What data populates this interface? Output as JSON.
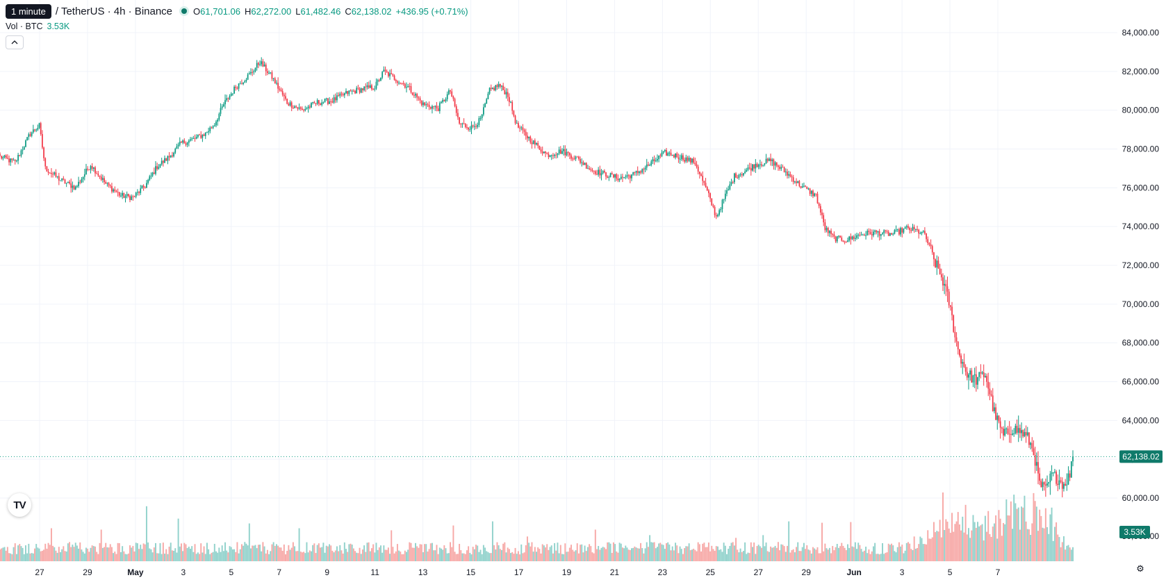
{
  "header": {
    "tooltip": "1 minute",
    "symbol": "/ TetherUS · 4h · Binance",
    "open_label": "O",
    "open_value": "61,701.06",
    "high_label": "H",
    "high_value": "62,272.00",
    "low_label": "L",
    "low_value": "61,482.46",
    "close_label": "C",
    "close_value": "62,138.02",
    "change": "+436.95 (+0.71%)"
  },
  "volume_legend": {
    "label": "Vol · BTC",
    "value": "3.53K"
  },
  "controls": {
    "collapse_icon": "chevron-up-icon",
    "logo_icon": "tradingview-logo-icon",
    "logo_text": "TV",
    "settings_icon": "gear-icon",
    "settings_glyph": "⚙"
  },
  "chart_data": {
    "type": "candlestick",
    "title": "",
    "price_axis": {
      "ticks": [
        60000,
        62000,
        64000,
        66000,
        68000,
        70000,
        72000,
        74000,
        76000,
        78000,
        80000,
        82000,
        84000
      ],
      "tick_labels": [
        "60,000.00",
        "62,000.00",
        "64,000.00",
        "66,000.00",
        "68,000.00",
        "70,000.00",
        "72,000.00",
        "74,000.00",
        "76,000.00",
        "78,000.00",
        "80,000.00",
        "82,000.00",
        "84,000.00"
      ],
      "range": [
        57500,
        85000
      ],
      "volume_tick_label": "50,000.00"
    },
    "last_price": {
      "value": 62138.02,
      "label": "62,138.02"
    },
    "last_volume": {
      "label": "3.53K"
    },
    "time_axis": {
      "labels": [
        "27",
        "29",
        "May",
        "3",
        "5",
        "7",
        "9",
        "11",
        "13",
        "15",
        "17",
        "19",
        "21",
        "23",
        "25",
        "27",
        "29",
        "Jun",
        "3",
        "5",
        "7"
      ],
      "bold": [
        false,
        false,
        true,
        false,
        false,
        false,
        false,
        false,
        false,
        false,
        false,
        false,
        false,
        false,
        false,
        false,
        false,
        true,
        false,
        false,
        false
      ]
    },
    "price_anchors": [
      [
        0,
        77600
      ],
      [
        10,
        77300
      ],
      [
        20,
        78800
      ],
      [
        26,
        79200
      ],
      [
        30,
        77000
      ],
      [
        40,
        76400
      ],
      [
        50,
        76000
      ],
      [
        60,
        77200
      ],
      [
        70,
        76200
      ],
      [
        80,
        75600
      ],
      [
        88,
        75500
      ],
      [
        96,
        76100
      ],
      [
        104,
        77100
      ],
      [
        112,
        77600
      ],
      [
        120,
        78300
      ],
      [
        128,
        78500
      ],
      [
        136,
        78800
      ],
      [
        142,
        79300
      ],
      [
        148,
        80300
      ],
      [
        156,
        81200
      ],
      [
        166,
        81900
      ],
      [
        172,
        82500
      ],
      [
        180,
        81700
      ],
      [
        190,
        80400
      ],
      [
        200,
        80000
      ],
      [
        210,
        80400
      ],
      [
        220,
        80500
      ],
      [
        230,
        80900
      ],
      [
        240,
        81100
      ],
      [
        248,
        81200
      ],
      [
        254,
        82000
      ],
      [
        262,
        81600
      ],
      [
        270,
        81200
      ],
      [
        280,
        80300
      ],
      [
        290,
        80100
      ],
      [
        298,
        81000
      ],
      [
        304,
        79300
      ],
      [
        312,
        79100
      ],
      [
        318,
        79500
      ],
      [
        324,
        81000
      ],
      [
        330,
        81300
      ],
      [
        336,
        80800
      ],
      [
        342,
        79200
      ],
      [
        352,
        78400
      ],
      [
        362,
        77700
      ],
      [
        372,
        77900
      ],
      [
        382,
        77500
      ],
      [
        392,
        76900
      ],
      [
        400,
        76700
      ],
      [
        410,
        76500
      ],
      [
        420,
        76700
      ],
      [
        430,
        77200
      ],
      [
        440,
        77800
      ],
      [
        450,
        77600
      ],
      [
        460,
        77300
      ],
      [
        468,
        75800
      ],
      [
        474,
        74500
      ],
      [
        480,
        75600
      ],
      [
        486,
        76600
      ],
      [
        492,
        76800
      ],
      [
        500,
        77200
      ],
      [
        510,
        77400
      ],
      [
        520,
        76800
      ],
      [
        530,
        76100
      ],
      [
        540,
        75600
      ],
      [
        546,
        73900
      ],
      [
        552,
        73400
      ],
      [
        560,
        73300
      ],
      [
        570,
        73600
      ],
      [
        580,
        73700
      ],
      [
        590,
        73600
      ],
      [
        600,
        73900
      ],
      [
        606,
        73800
      ],
      [
        612,
        73600
      ],
      [
        618,
        72300
      ],
      [
        624,
        71200
      ],
      [
        628,
        70100
      ],
      [
        634,
        67600
      ],
      [
        640,
        66400
      ],
      [
        646,
        66100
      ],
      [
        652,
        66400
      ],
      [
        658,
        64400
      ],
      [
        664,
        63200
      ],
      [
        670,
        63600
      ],
      [
        676,
        63400
      ],
      [
        680,
        63100
      ],
      [
        684,
        62400
      ],
      [
        688,
        60700
      ],
      [
        692,
        60400
      ],
      [
        696,
        61200
      ],
      [
        700,
        61000
      ],
      [
        704,
        60700
      ],
      [
        708,
        61200
      ],
      [
        710,
        62138
      ]
    ],
    "volume_profile": [
      [
        0,
        0.2
      ],
      [
        600,
        0.2
      ],
      [
        612,
        0.35
      ],
      [
        616,
        0.55
      ],
      [
        640,
        0.5
      ],
      [
        660,
        0.55
      ],
      [
        676,
        0.8
      ],
      [
        690,
        0.65
      ],
      [
        700,
        0.4
      ],
      [
        706,
        0.2
      ],
      [
        710,
        0.16
      ]
    ],
    "volume_spikes": [
      [
        34,
        0.48
      ],
      [
        67,
        0.46
      ],
      [
        97,
        0.8
      ],
      [
        118,
        0.62
      ],
      [
        165,
        0.55
      ],
      [
        198,
        0.48
      ],
      [
        259,
        0.45
      ],
      [
        300,
        0.52
      ],
      [
        326,
        0.58
      ],
      [
        349,
        0.36
      ],
      [
        394,
        0.46
      ],
      [
        430,
        0.38
      ],
      [
        487,
        0.34
      ],
      [
        505,
        0.38
      ],
      [
        522,
        0.58
      ],
      [
        544,
        0.56
      ],
      [
        563,
        0.57
      ],
      [
        624,
        1.0
      ],
      [
        639,
        0.82
      ],
      [
        650,
        0.54
      ],
      [
        658,
        0.55
      ],
      [
        666,
        0.9
      ],
      [
        677,
        0.78
      ],
      [
        688,
        0.75
      ],
      [
        696,
        0.78
      ]
    ],
    "num_candles": 711,
    "colors": {
      "up": "#089981",
      "down": "#f23645",
      "vol_up": "#92d2cc",
      "vol_down": "#f7a9a7",
      "grid": "#f0f3fa"
    }
  }
}
